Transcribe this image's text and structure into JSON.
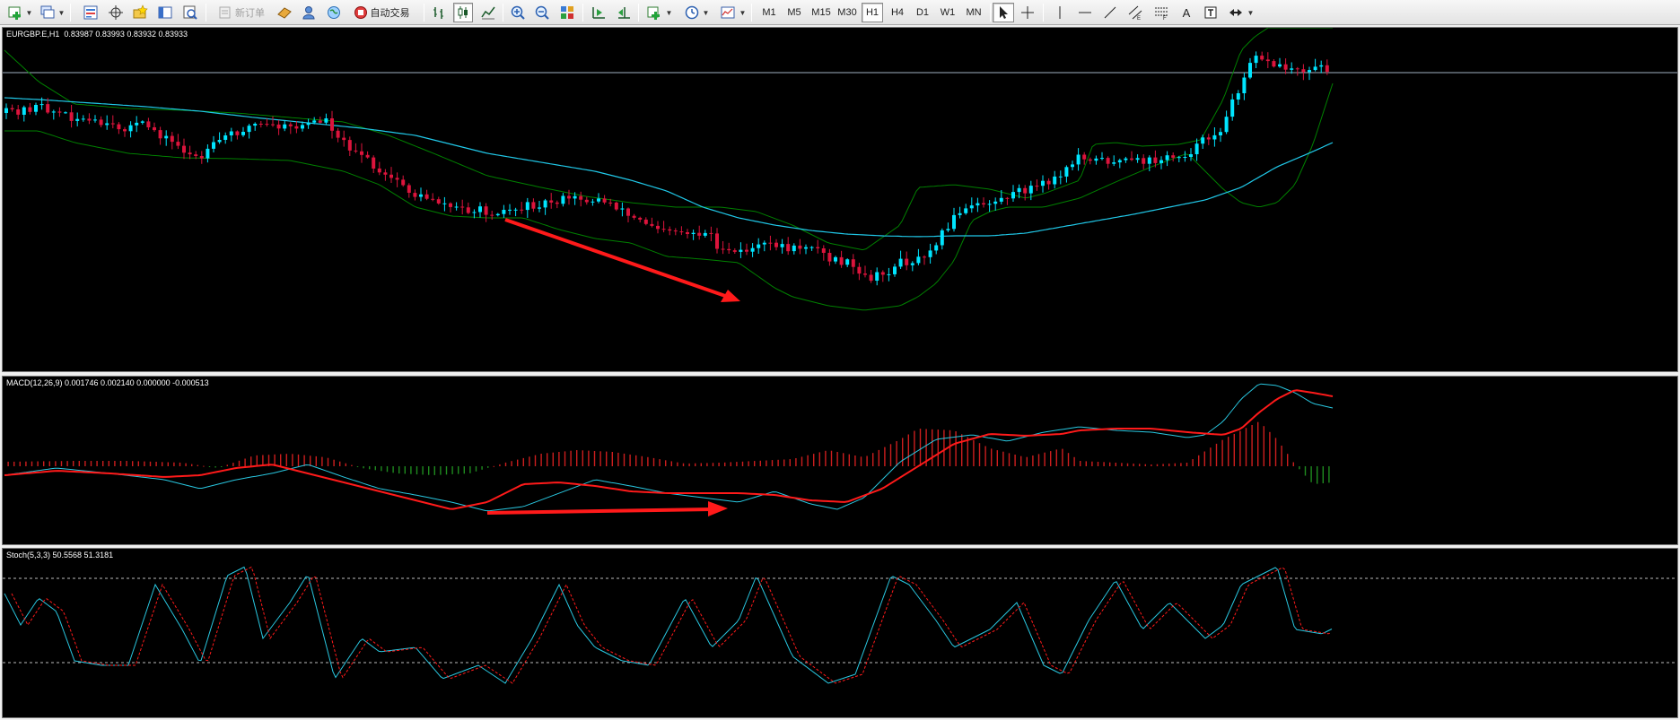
{
  "toolbar": {
    "new_order_label": "新订单",
    "auto_trading_label": "自动交易",
    "timeframes": [
      "M1",
      "M5",
      "M15",
      "M30",
      "H1",
      "H4",
      "D1",
      "W1",
      "MN"
    ],
    "active_timeframe": "H1",
    "text_tool_label": "A"
  },
  "main_chart": {
    "label": "EURGBP.E,H1  0.83987 0.83993 0.83932 0.83933",
    "colors": {
      "bull": "#00e5ff",
      "bear": "#dc143c",
      "ma": "#20c8e8",
      "bands": "#008000",
      "price_line": "#9fb0c0",
      "arrow": "#ff1a1a"
    }
  },
  "macd": {
    "label": "MACD(12,26,9) 0.001746 0.002140 0.000000 -0.000513",
    "colors": {
      "macd_line": "#29c7e0",
      "signal_line": "#ff1a1a",
      "hist_pos": "#cc1e1e",
      "hist_neg": "#1f8a1f"
    }
  },
  "stochastic": {
    "label": "Stoch(5,3,3) 50.5568 51.3181",
    "colors": {
      "main_line": "#29c7e0",
      "signal_line": "#ff1a1a",
      "levels": "#bbbbbb"
    }
  }
}
